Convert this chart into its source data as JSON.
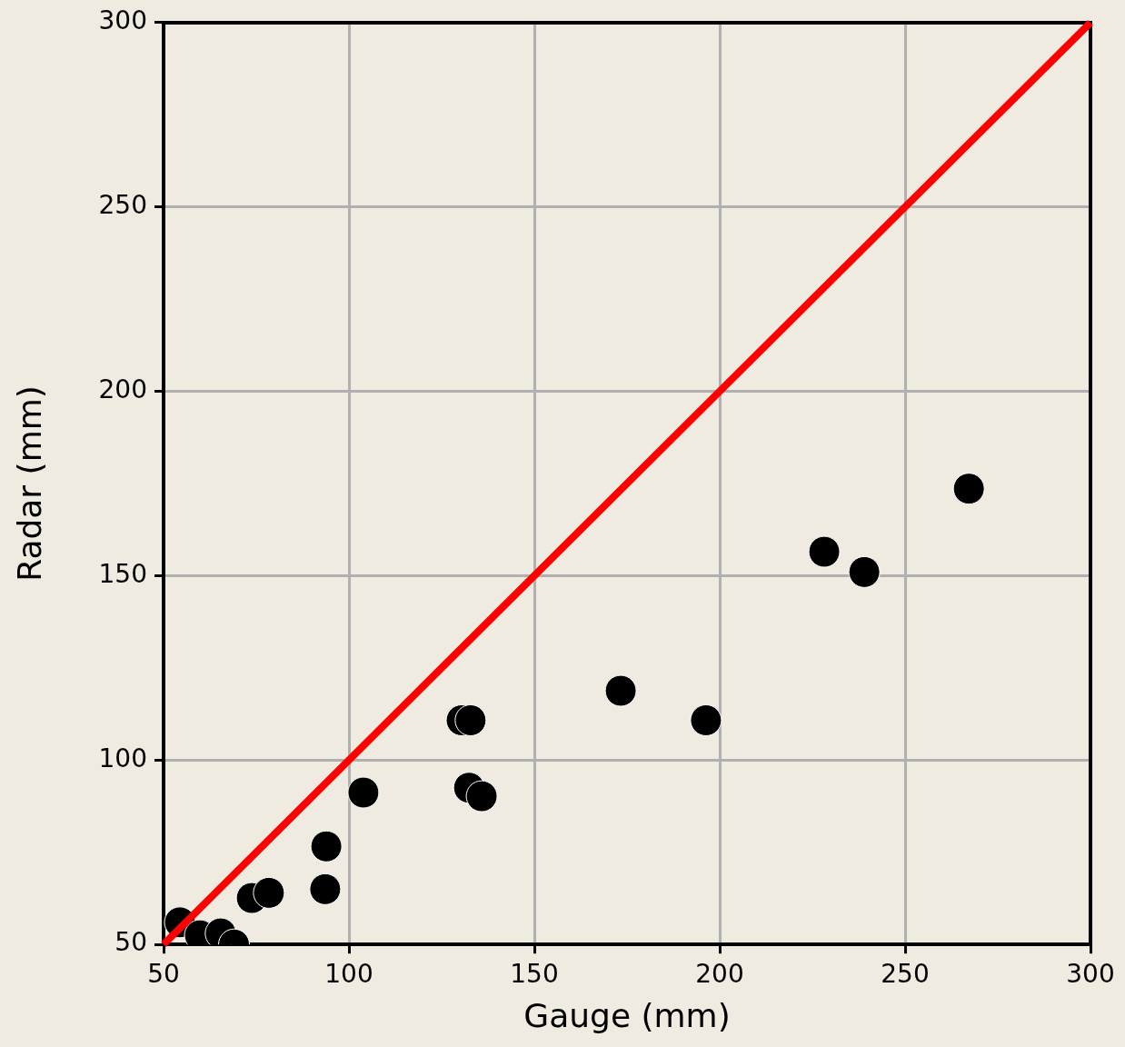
{
  "chart_data": {
    "type": "scatter",
    "xlabel": "Gauge (mm)",
    "ylabel": "Radar (mm)",
    "xlim": [
      50,
      300
    ],
    "xticks": [
      50,
      100,
      150,
      200,
      250,
      300
    ],
    "ylim": [
      50,
      300
    ],
    "yticks": [
      50,
      100,
      150,
      200,
      250,
      300
    ],
    "grid": true,
    "marker": "circle",
    "series": [
      {
        "color": "#000000",
        "x": [
          54.4,
          59.8,
          65.4,
          69,
          73.8,
          78.4,
          93.6,
          93.9,
          103.9,
          130.4,
          132.8,
          132.4,
          135.8,
          173.3,
          196.3,
          228.2,
          239,
          267.2
        ],
        "values": [
          56,
          52.5,
          53,
          50,
          62.6,
          64,
          65,
          76.6,
          91.2,
          110.8,
          110.8,
          92.5,
          90.2,
          118.8,
          110.8,
          156.5,
          151,
          173.6
        ]
      },
      {
        "type": "line",
        "color": "#ff0000",
        "marker": "none",
        "x": [
          50,
          300
        ],
        "values": [
          50,
          300
        ]
      }
    ]
  }
}
